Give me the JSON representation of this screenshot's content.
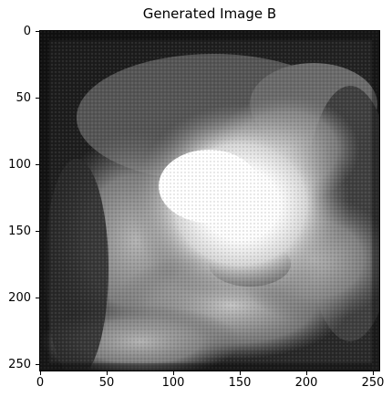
{
  "title": "Generated Image B",
  "axes": {
    "x_ticks": [
      "0",
      "50",
      "100",
      "150",
      "200",
      "250"
    ],
    "y_ticks": [
      "0",
      "50",
      "100",
      "150",
      "200",
      "250"
    ],
    "x_range": [
      0,
      256
    ],
    "y_range": [
      0,
      256
    ]
  },
  "image": {
    "description_kind": "grayscale generated texture",
    "colormap": "gray"
  }
}
